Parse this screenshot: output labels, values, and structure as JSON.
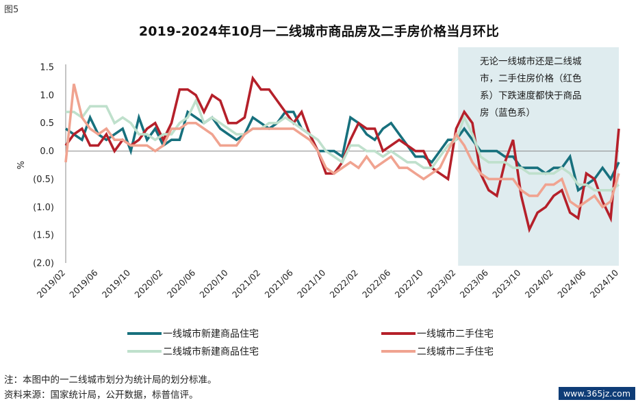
{
  "figure_label": "图5",
  "footnote": "注：本图中的一二线城市划分为统计局的划分标准。",
  "source": "资料来源：国家统计局，公开数据，标普信评。",
  "watermark": "www.365jz.com",
  "colors": {
    "tier1_new": "#17707d",
    "tier1_resale": "#b5202a",
    "tier2_new": "#bfe0cc",
    "tier2_resale": "#f0a390",
    "highlight": "#dfecef",
    "axis": "#888888"
  },
  "chart_data": {
    "type": "line",
    "title": "2019-2024年10月一二线城市商品房及二手房价格当月环比",
    "xlabel": "",
    "ylabel": "%",
    "ylim": [
      -2.0,
      1.5
    ],
    "yticks": [
      1.5,
      1.0,
      0.5,
      0.0,
      -0.5,
      -1.0,
      -1.5,
      -2.0
    ],
    "ytick_labels": [
      "1.5",
      "1.0",
      "0.5",
      "0.0",
      "(0.5)",
      "(1.0)",
      "(1.5)",
      "(2.0)"
    ],
    "x": [
      "2019/02",
      "2019/03",
      "2019/04",
      "2019/05",
      "2019/06",
      "2019/07",
      "2019/08",
      "2019/09",
      "2019/10",
      "2019/11",
      "2019/12",
      "2020/01",
      "2020/02",
      "2020/03",
      "2020/04",
      "2020/05",
      "2020/06",
      "2020/07",
      "2020/08",
      "2020/09",
      "2020/10",
      "2020/11",
      "2020/12",
      "2021/01",
      "2021/02",
      "2021/03",
      "2021/04",
      "2021/05",
      "2021/06",
      "2021/07",
      "2021/08",
      "2021/09",
      "2021/10",
      "2021/11",
      "2021/12",
      "2022/01",
      "2022/02",
      "2022/03",
      "2022/04",
      "2022/05",
      "2022/06",
      "2022/07",
      "2022/08",
      "2022/09",
      "2022/10",
      "2022/11",
      "2022/12",
      "2023/01",
      "2023/02",
      "2023/03",
      "2023/04",
      "2023/05",
      "2023/06",
      "2023/07",
      "2023/08",
      "2023/09",
      "2023/10",
      "2023/11",
      "2023/12",
      "2024/01",
      "2024/02",
      "2024/03",
      "2024/04",
      "2024/05",
      "2024/06",
      "2024/07",
      "2024/08",
      "2024/09",
      "2024/10"
    ],
    "xtick_labels": [
      "2019/02",
      "2019/06",
      "2019/10",
      "2020/02",
      "2020/06",
      "2020/10",
      "2021/02",
      "2021/06",
      "2021/10",
      "2022/02",
      "2022/06",
      "2022/10",
      "2023/02",
      "2023/06",
      "2023/10",
      "2024/02",
      "2024/06",
      "2024/10"
    ],
    "series": [
      {
        "name": "一线城市新建商品住宅",
        "color_key": "tier1_new",
        "values": [
          0.4,
          0.3,
          0.2,
          0.6,
          0.3,
          0.2,
          0.3,
          0.4,
          0.0,
          0.6,
          0.2,
          0.4,
          0.1,
          0.2,
          0.2,
          0.7,
          0.6,
          0.5,
          0.6,
          0.4,
          0.3,
          0.2,
          0.3,
          0.6,
          0.5,
          0.4,
          0.5,
          0.7,
          0.7,
          0.4,
          0.3,
          0.0,
          0.0,
          0.0,
          -0.1,
          0.6,
          0.5,
          0.3,
          0.2,
          0.4,
          0.5,
          0.3,
          0.1,
          -0.1,
          -0.1,
          -0.2,
          0.0,
          0.2,
          0.2,
          0.4,
          0.2,
          0.0,
          0.0,
          0.0,
          -0.1,
          -0.1,
          -0.3,
          -0.3,
          -0.3,
          -0.4,
          -0.3,
          -0.3,
          -0.1,
          -0.7,
          -0.6,
          -0.5,
          -0.3,
          -0.5,
          -0.2
        ]
      },
      {
        "name": "一线城市二手住宅",
        "color_key": "tier1_resale",
        "values": [
          0.1,
          0.3,
          0.4,
          0.1,
          0.1,
          0.3,
          0.0,
          0.2,
          0.1,
          0.2,
          0.4,
          0.5,
          0.2,
          0.5,
          1.1,
          1.1,
          1.0,
          0.7,
          1.0,
          0.9,
          0.5,
          0.5,
          0.6,
          1.3,
          1.1,
          1.1,
          0.9,
          0.7,
          0.5,
          0.7,
          0.3,
          0.0,
          -0.4,
          -0.4,
          -0.2,
          0.2,
          0.5,
          0.4,
          0.4,
          0.0,
          0.1,
          0.2,
          0.1,
          0.0,
          0.0,
          -0.3,
          -0.4,
          -0.5,
          0.4,
          0.7,
          0.5,
          -0.4,
          -0.7,
          -0.8,
          -0.2,
          0.2,
          -0.8,
          -1.4,
          -1.1,
          -1.0,
          -0.8,
          -0.7,
          -1.1,
          -1.2,
          -0.4,
          -0.5,
          -0.9,
          -1.2,
          0.4
        ]
      },
      {
        "name": "二线城市新建商品住宅",
        "color_key": "tier2_new",
        "values": [
          0.7,
          0.7,
          0.6,
          0.8,
          0.8,
          0.8,
          0.5,
          0.6,
          0.5,
          0.3,
          0.3,
          0.2,
          0.3,
          0.3,
          0.5,
          0.6,
          0.9,
          0.5,
          0.6,
          0.5,
          0.4,
          0.3,
          0.3,
          0.4,
          0.4,
          0.5,
          0.5,
          0.6,
          0.5,
          0.4,
          0.3,
          0.2,
          0.0,
          -0.1,
          -0.2,
          0.1,
          0.1,
          0.0,
          0.0,
          -0.1,
          0.0,
          -0.1,
          -0.2,
          -0.2,
          -0.3,
          -0.3,
          -0.1,
          0.1,
          0.2,
          0.6,
          0.3,
          -0.1,
          -0.2,
          -0.2,
          -0.2,
          -0.3,
          -0.3,
          -0.4,
          -0.4,
          -0.4,
          -0.4,
          -0.3,
          -0.4,
          -0.6,
          -0.6,
          -0.7,
          -0.7,
          -0.7,
          -0.6
        ]
      },
      {
        "name": "二线城市二手住宅",
        "color_key": "tier2_resale",
        "values": [
          -0.2,
          1.2,
          0.6,
          0.4,
          0.3,
          0.4,
          0.2,
          0.2,
          0.1,
          0.1,
          0.1,
          0.0,
          0.1,
          0.4,
          0.4,
          0.5,
          0.5,
          0.4,
          0.3,
          0.1,
          0.1,
          0.1,
          0.3,
          0.4,
          0.4,
          0.4,
          0.4,
          0.4,
          0.4,
          0.3,
          0.2,
          0.0,
          -0.3,
          -0.4,
          -0.3,
          -0.2,
          -0.3,
          -0.1,
          -0.3,
          -0.2,
          -0.1,
          -0.3,
          -0.3,
          -0.4,
          -0.5,
          -0.4,
          -0.3,
          0.0,
          0.3,
          0.1,
          -0.2,
          -0.4,
          -0.5,
          -0.5,
          -0.5,
          -0.5,
          -0.7,
          -0.8,
          -0.8,
          -0.6,
          -0.6,
          -0.5,
          -0.9,
          -1.0,
          -0.9,
          -0.8,
          -1.0,
          -0.9,
          -0.4
        ]
      }
    ],
    "highlight_range": [
      "2023/03",
      "2024/10"
    ],
    "annotation_lines": [
      "无论一线城市还是二线城",
      "市，二手住房价格（红色",
      "系）下跌速度都快于商品",
      "房（蓝色系）"
    ],
    "legend": [
      "一线城市新建商品住宅",
      "一线城市二手住宅",
      "二线城市新建商品住宅",
      "二线城市二手住宅"
    ],
    "grid": false,
    "legend_position": "bottom"
  }
}
